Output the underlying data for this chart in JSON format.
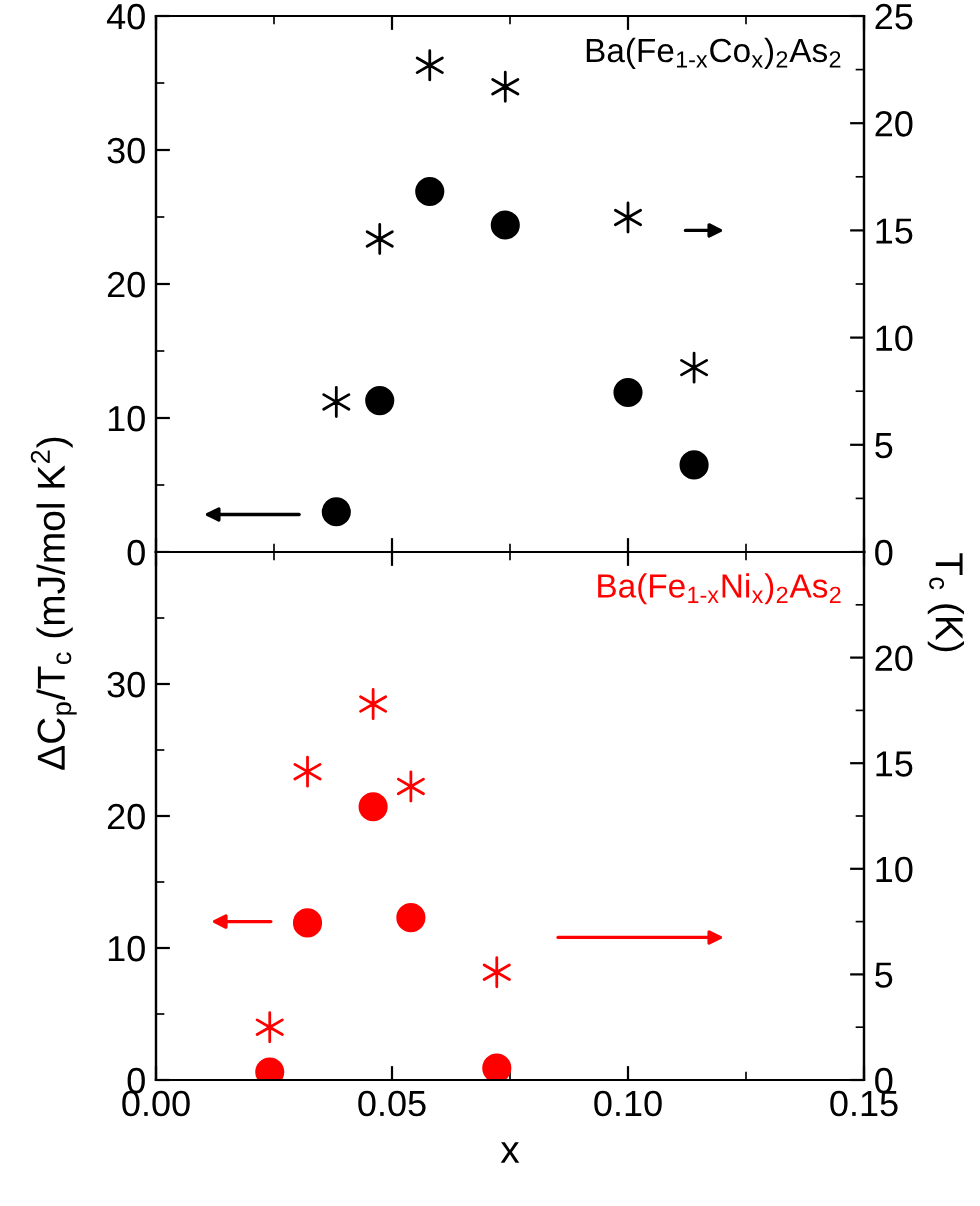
{
  "chart_data": [
    {
      "type": "scatter",
      "ylabel": "ΔC$_{p}$/T$_{c}$ (mJ/mol K$^{2}$)",
      "y2label": "T$_{c}$ (K)",
      "annotations": [
        "Ba(Fe$_{1-x}$Co$_{x}$)$_{2}$As$_{2}$"
      ],
      "tick_labels": "y",
      "xlim": [
        0,
        0.15
      ],
      "xticks": [
        0,
        0.05,
        0.1,
        0.15
      ],
      "ylim": [
        0,
        40
      ],
      "yticks": [
        0,
        10,
        20,
        30,
        40
      ],
      "y2lim": [
        0,
        25
      ],
      "y2ticks": [
        0,
        5,
        10,
        15,
        20,
        25
      ],
      "series": [
        {
          "color": "#000000",
          "marker": "circle",
          "x": [
            0.0382,
            0.0474,
            0.058,
            0.074,
            0.1,
            0.114
          ],
          "values": [
            3.0,
            11.3,
            26.9,
            24.4,
            11.9,
            6.5
          ]
        },
        {
          "color": "#000000",
          "marker": "cross",
          "axis": "y2",
          "x": [
            0.0382,
            0.0474,
            0.058,
            0.074,
            0.1,
            0.114
          ],
          "values": [
            7.0,
            14.6,
            22.7,
            21.7,
            15.6,
            8.6
          ]
        }
      ]
    },
    {
      "type": "scatter",
      "xlabel": "x",
      "annotations": [
        "Ba(Fe$_{1-x}$Ni$_{x}$)$_{2}$As$_{2}$"
      ],
      "xlim": [
        0,
        0.15
      ],
      "xticks": [
        {
          "value": 0,
          "label": "0.00"
        },
        {
          "value": 0.05,
          "label": "0.05"
        },
        {
          "value": 0.1,
          "label": "0.10"
        },
        {
          "value": 0.15,
          "label": "0.15"
        }
      ],
      "ylim": [
        0,
        40
      ],
      "yticks": [
        0,
        10,
        20,
        30
      ],
      "y2lim": [
        0,
        25
      ],
      "y2ticks": [
        0,
        5,
        10,
        15,
        20
      ],
      "series": [
        {
          "color": "#ff0000",
          "marker": "circle",
          "x": [
            0.0241,
            0.0321,
            0.046,
            0.054,
            0.0722
          ],
          "values": [
            0.6,
            11.9,
            20.7,
            12.3,
            0.9
          ]
        },
        {
          "color": "#ff0000",
          "marker": "cross",
          "axis": "y2",
          "x": [
            0.0241,
            0.0321,
            0.046,
            0.054,
            0.0722
          ],
          "values": [
            2.5,
            14.6,
            17.8,
            13.9,
            5.1
          ]
        }
      ]
    }
  ]
}
